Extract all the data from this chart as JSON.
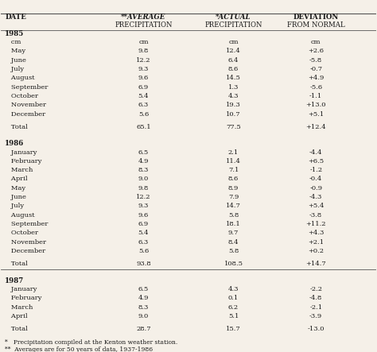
{
  "headers": [
    "DATE",
    "**AVERAGE\nPRECIPITATION",
    "*ACTUAL\nPRECIPITATION",
    "DEVIATION\nFROM NORMAL"
  ],
  "rows": [
    [
      "1985",
      "",
      "",
      ""
    ],
    [
      "   cm",
      "cm",
      "cm",
      "cm"
    ],
    [
      "   May",
      "9.8",
      "12.4",
      "+2.6"
    ],
    [
      "   June",
      "12.2",
      "6.4",
      "-5.8"
    ],
    [
      "   July",
      "9.3",
      "8.6",
      "-0.7"
    ],
    [
      "   August",
      "9.6",
      "14.5",
      "+4.9"
    ],
    [
      "   September",
      "6.9",
      "1.3",
      "-5.6"
    ],
    [
      "   October",
      "5.4",
      "4.3",
      "-1.1"
    ],
    [
      "   November",
      "6.3",
      "19.3",
      "+13.0"
    ],
    [
      "   December",
      "5.6",
      "10.7",
      "+5.1"
    ],
    [
      "",
      "",
      "",
      ""
    ],
    [
      "   Total",
      "65.1",
      "77.5",
      "+12.4"
    ],
    [
      "",
      "",
      "",
      ""
    ],
    [
      "",
      "",
      "",
      ""
    ],
    [
      "1986",
      "",
      "",
      ""
    ],
    [
      "   January",
      "6.5",
      "2.1",
      "-4.4"
    ],
    [
      "   February",
      "4.9",
      "11.4",
      "+6.5"
    ],
    [
      "   March",
      "8.3",
      "7.1",
      "-1.2"
    ],
    [
      "   April",
      "9.0",
      "8.6",
      "-0.4"
    ],
    [
      "   May",
      "9.8",
      "8.9",
      "-0.9"
    ],
    [
      "   June",
      "12.2",
      "7.9",
      "-4.3"
    ],
    [
      "   July",
      "9.3",
      "14.7",
      "+5.4"
    ],
    [
      "   August",
      "9.6",
      "5.8",
      "-3.8"
    ],
    [
      "   September",
      "6.9",
      "18.1",
      "+11.2"
    ],
    [
      "   October",
      "5.4",
      "9.7",
      "+4.3"
    ],
    [
      "   November",
      "6.3",
      "8.4",
      "+2.1"
    ],
    [
      "   December",
      "5.6",
      "5.8",
      "+0.2"
    ],
    [
      "",
      "",
      "",
      ""
    ],
    [
      "   Total",
      "93.8",
      "108.5",
      "+14.7"
    ],
    [
      "",
      "",
      "",
      ""
    ],
    [
      "",
      "",
      "",
      ""
    ],
    [
      "1987",
      "",
      "",
      ""
    ],
    [
      "   January",
      "6.5",
      "4.3",
      "-2.2"
    ],
    [
      "   February",
      "4.9",
      "0.1",
      "-4.8"
    ],
    [
      "   March",
      "8.3",
      "6.2",
      "-2.1"
    ],
    [
      "   April",
      "9.0",
      "5.1",
      "-3.9"
    ],
    [
      "",
      "",
      "",
      ""
    ],
    [
      "   Total",
      "28.7",
      "15.7",
      "-13.0"
    ]
  ],
  "footnotes": [
    "*   Precipitation compiled at the Kenton weather station.",
    "**  Averages are for 50 years of data, 1937-1986"
  ],
  "bg_color": "#f5f0e8",
  "text_color": "#1a1a1a",
  "header_line_color": "#555555"
}
